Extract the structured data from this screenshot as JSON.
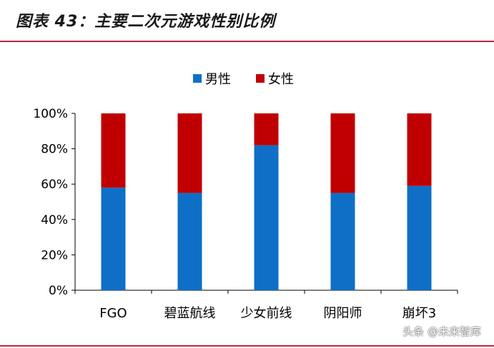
{
  "header": {
    "title": "图表 43：主要二次元游戏性别比例"
  },
  "watermark": "头条 @未来智库",
  "chart_data": {
    "type": "bar",
    "stacked": true,
    "categories": [
      "FGO",
      "碧蓝航线",
      "少女前线",
      "阴阳师",
      "崩坏3"
    ],
    "series": [
      {
        "name": "男性",
        "color": "#0f6fc6",
        "values": [
          58,
          55,
          82,
          55,
          59
        ]
      },
      {
        "name": "女性",
        "color": "#c00000",
        "values": [
          42,
          45,
          18,
          45,
          41
        ]
      }
    ],
    "ylim": [
      0,
      100
    ],
    "yticks": [
      "0%",
      "20%",
      "40%",
      "60%",
      "80%",
      "100%"
    ],
    "legend_position": "top",
    "grid": false
  }
}
